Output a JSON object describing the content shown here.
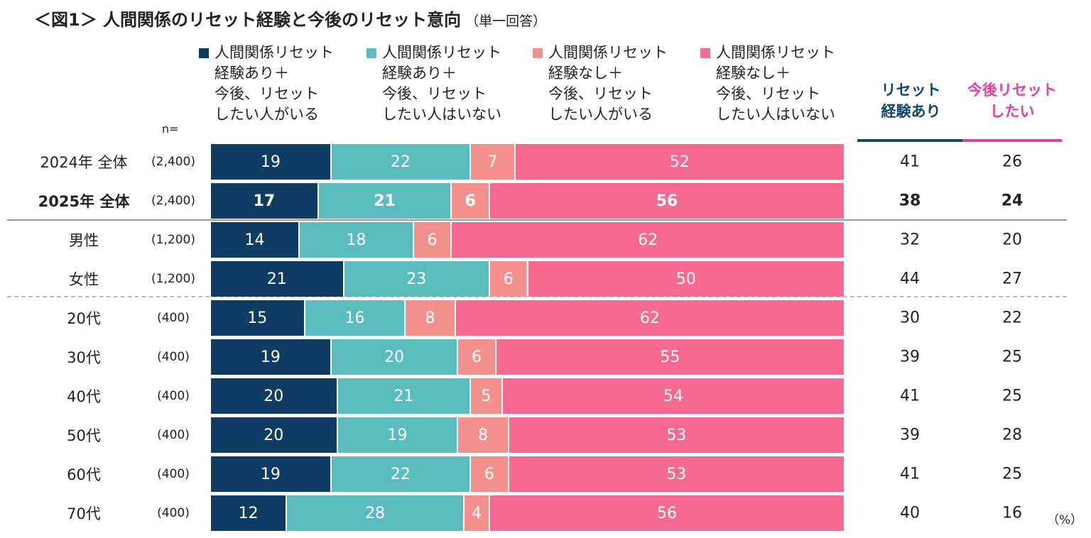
{
  "title": "＜図1＞ 人間関係のリセット経験と今後のリセット意向",
  "subtitle": "（単一回答）",
  "n_label": "n=",
  "unit": "（%）",
  "colors": {
    "s1": "#0f3c62",
    "s2": "#5bbcc0",
    "s3": "#f5918c",
    "s4": "#f66a92",
    "navy": "#11476e",
    "magenta": "#e03fa3"
  },
  "col_headers": {
    "experience": "リセット\n経験あり",
    "intent": "今後リセット\nしたい"
  },
  "chart_data": {
    "type": "bar",
    "stacked": true,
    "orientation": "horizontal",
    "title": "＜図1＞ 人間関係のリセット経験と今後のリセット意向",
    "legend": [
      "人間関係リセット\n経験あり＋\n今後、リセット\nしたい人がいる",
      "人間関係リセット\n経験あり＋\n今後、リセット\nしたい人はいない",
      "人間関係リセット\n経験なし＋\n今後、リセット\nしたい人がいる",
      "人間関係リセット\n経験なし＋\n今後、リセット\nしたい人はいない"
    ],
    "legend_position": "top",
    "rows": [
      {
        "label": "2024年 全体",
        "n": "(2,400)",
        "values": [
          19,
          22,
          7,
          52
        ],
        "experience": 41,
        "intent": 26,
        "bold": false
      },
      {
        "label": "2025年 全体",
        "n": "(2,400)",
        "values": [
          17,
          21,
          6,
          56
        ],
        "experience": 38,
        "intent": 24,
        "bold": true
      },
      {
        "label": "男性",
        "n": "(1,200)",
        "values": [
          14,
          18,
          6,
          62
        ],
        "experience": 32,
        "intent": 20,
        "bold": false
      },
      {
        "label": "女性",
        "n": "(1,200)",
        "values": [
          21,
          23,
          6,
          50
        ],
        "experience": 44,
        "intent": 27,
        "bold": false
      },
      {
        "label": "20代",
        "n": "(400)",
        "values": [
          15,
          16,
          8,
          62
        ],
        "experience": 30,
        "intent": 22,
        "bold": false
      },
      {
        "label": "30代",
        "n": "(400)",
        "values": [
          19,
          20,
          6,
          55
        ],
        "experience": 39,
        "intent": 25,
        "bold": false
      },
      {
        "label": "40代",
        "n": "(400)",
        "values": [
          20,
          21,
          5,
          54
        ],
        "experience": 41,
        "intent": 25,
        "bold": false
      },
      {
        "label": "50代",
        "n": "(400)",
        "values": [
          20,
          19,
          8,
          53
        ],
        "experience": 39,
        "intent": 28,
        "bold": false
      },
      {
        "label": "60代",
        "n": "(400)",
        "values": [
          19,
          22,
          6,
          53
        ],
        "experience": 41,
        "intent": 25,
        "bold": false
      },
      {
        "label": "70代",
        "n": "(400)",
        "values": [
          12,
          28,
          4,
          56
        ],
        "experience": 40,
        "intent": 16,
        "bold": false
      }
    ]
  }
}
